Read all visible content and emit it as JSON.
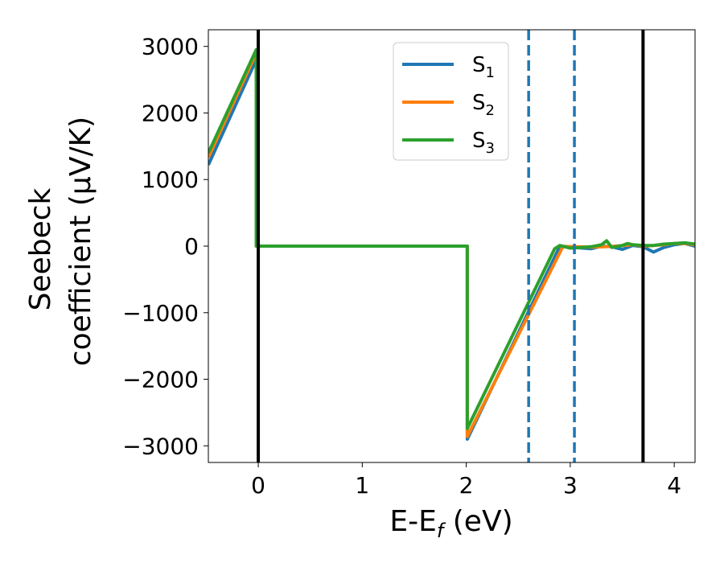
{
  "chart_data": {
    "type": "line",
    "xlabel": "E-E",
    "xlabel_sub": "f",
    "xlabel_suffix": " (eV)",
    "ylabel_line1": "Seebeck",
    "ylabel_line2": "coefficient  (μV/K)",
    "xlim": [
      -0.48,
      4.2
    ],
    "ylim": [
      -3250,
      3250
    ],
    "xticks": [
      0,
      1,
      2,
      3,
      4
    ],
    "xtick_labels": [
      "0",
      "1",
      "2",
      "3",
      "4"
    ],
    "yticks": [
      3000,
      2000,
      1000,
      0,
      -1000,
      -2000,
      -3000
    ],
    "ytick_labels": [
      "3000",
      "2000",
      "1000",
      "0",
      "−1000",
      "−2000",
      "−3000"
    ],
    "grid": false,
    "legend_position": "top-right",
    "series": [
      {
        "name": "S",
        "name_sub": "1",
        "color": "#1f77b4",
        "points": [
          [
            -0.48,
            1220
          ],
          [
            -0.02,
            2800
          ],
          [
            -0.02,
            0
          ],
          [
            2.01,
            0
          ],
          [
            2.01,
            -2900
          ],
          [
            2.9,
            -5
          ],
          [
            3.2,
            -40
          ],
          [
            3.3,
            0
          ],
          [
            3.4,
            -10
          ],
          [
            3.5,
            -50
          ],
          [
            3.6,
            10
          ],
          [
            3.7,
            -10
          ],
          [
            3.8,
            -90
          ],
          [
            3.9,
            -20
          ],
          [
            4.0,
            20
          ],
          [
            4.1,
            40
          ],
          [
            4.2,
            0
          ]
        ]
      },
      {
        "name": "S",
        "name_sub": "2",
        "color": "#ff7f0e",
        "points": [
          [
            -0.48,
            1330
          ],
          [
            -0.02,
            2900
          ],
          [
            -0.02,
            0
          ],
          [
            2.01,
            0
          ],
          [
            2.01,
            -2860
          ],
          [
            2.93,
            -5
          ],
          [
            3.2,
            -15
          ],
          [
            3.4,
            -5
          ],
          [
            3.6,
            20
          ],
          [
            3.7,
            0
          ],
          [
            3.8,
            10
          ],
          [
            3.9,
            20
          ],
          [
            4.0,
            40
          ],
          [
            4.1,
            40
          ],
          [
            4.2,
            20
          ]
        ]
      },
      {
        "name": "S",
        "name_sub": "3",
        "color": "#2ca02c",
        "points": [
          [
            -0.48,
            1400
          ],
          [
            -0.02,
            2950
          ],
          [
            -0.02,
            0
          ],
          [
            2.01,
            0
          ],
          [
            2.01,
            -2740
          ],
          [
            2.85,
            -40
          ],
          [
            2.9,
            10
          ],
          [
            3.0,
            -30
          ],
          [
            3.1,
            -20
          ],
          [
            3.2,
            -10
          ],
          [
            3.3,
            20
          ],
          [
            3.35,
            80
          ],
          [
            3.4,
            -20
          ],
          [
            3.5,
            10
          ],
          [
            3.55,
            40
          ],
          [
            3.6,
            20
          ],
          [
            3.7,
            10
          ],
          [
            3.8,
            10
          ],
          [
            3.9,
            30
          ],
          [
            4.0,
            40
          ],
          [
            4.1,
            50
          ],
          [
            4.2,
            30
          ]
        ]
      }
    ],
    "vlines": [
      {
        "x": 0.0,
        "style": "solid",
        "color": "#000000"
      },
      {
        "x": 3.7,
        "style": "solid",
        "color": "#000000"
      },
      {
        "x": 2.6,
        "style": "dashed",
        "color": "#1f77b4"
      },
      {
        "x": 3.04,
        "style": "dashed",
        "color": "#1f77b4"
      }
    ]
  }
}
